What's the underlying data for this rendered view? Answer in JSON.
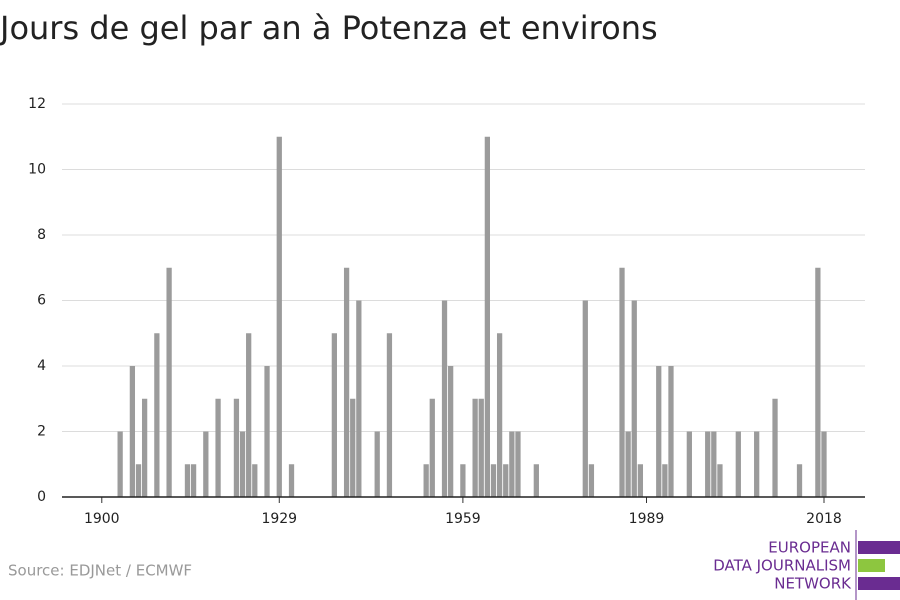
{
  "chart_data": {
    "type": "bar",
    "title": "Jours de gel par an à Potenza et environs",
    "source": "Source: EDJNet / ECMWF",
    "logo": [
      "EUROPEAN",
      "DATA JOURNALISM",
      "NETWORK"
    ],
    "color": "#9b9b9b",
    "x": [
      1900,
      1901,
      1902,
      1903,
      1904,
      1905,
      1906,
      1907,
      1908,
      1909,
      1910,
      1911,
      1912,
      1913,
      1914,
      1915,
      1916,
      1917,
      1918,
      1919,
      1920,
      1921,
      1922,
      1923,
      1924,
      1925,
      1926,
      1927,
      1928,
      1929,
      1930,
      1931,
      1932,
      1933,
      1934,
      1935,
      1936,
      1937,
      1938,
      1939,
      1940,
      1941,
      1942,
      1943,
      1944,
      1945,
      1946,
      1947,
      1948,
      1949,
      1950,
      1951,
      1952,
      1953,
      1954,
      1955,
      1956,
      1957,
      1958,
      1959,
      1960,
      1961,
      1962,
      1963,
      1964,
      1965,
      1966,
      1967,
      1968,
      1969,
      1970,
      1971,
      1972,
      1973,
      1974,
      1975,
      1976,
      1977,
      1978,
      1979,
      1980,
      1981,
      1982,
      1983,
      1984,
      1985,
      1986,
      1987,
      1988,
      1989,
      1990,
      1991,
      1992,
      1993,
      1994,
      1995,
      1996,
      1997,
      1998,
      1999,
      2000,
      2001,
      2002,
      2003,
      2004,
      2005,
      2006,
      2007,
      2008,
      2009,
      2010,
      2011,
      2012,
      2013,
      2014,
      2015,
      2016,
      2017,
      2018
    ],
    "values": [
      0,
      0,
      0,
      2,
      0,
      4,
      1,
      3,
      0,
      5,
      0,
      7,
      0,
      0,
      1,
      1,
      0,
      2,
      0,
      3,
      0,
      0,
      3,
      2,
      5,
      1,
      0,
      4,
      0,
      11,
      0,
      1,
      0,
      0,
      0,
      0,
      0,
      0,
      5,
      0,
      7,
      3,
      6,
      0,
      0,
      2,
      0,
      5,
      0,
      0,
      0,
      0,
      0,
      1,
      3,
      0,
      6,
      4,
      0,
      1,
      0,
      3,
      3,
      11,
      1,
      5,
      1,
      2,
      2,
      0,
      0,
      1,
      0,
      0,
      0,
      0,
      0,
      0,
      0,
      6,
      1,
      0,
      0,
      0,
      0,
      7,
      2,
      6,
      1,
      0,
      0,
      4,
      1,
      4,
      0,
      0,
      2,
      0,
      0,
      2,
      2,
      1,
      0,
      0,
      2,
      0,
      0,
      2,
      0,
      0,
      3,
      0,
      0,
      0,
      1,
      0,
      0,
      7,
      2
    ],
    "xlim": [
      1893.5,
      2024.7
    ],
    "xticks": [
      1900,
      1929,
      1959,
      1989,
      2018
    ],
    "ylim": [
      0,
      12
    ],
    "yticks": [
      0,
      2,
      4,
      6,
      8,
      10,
      12
    ],
    "grid": true
  }
}
